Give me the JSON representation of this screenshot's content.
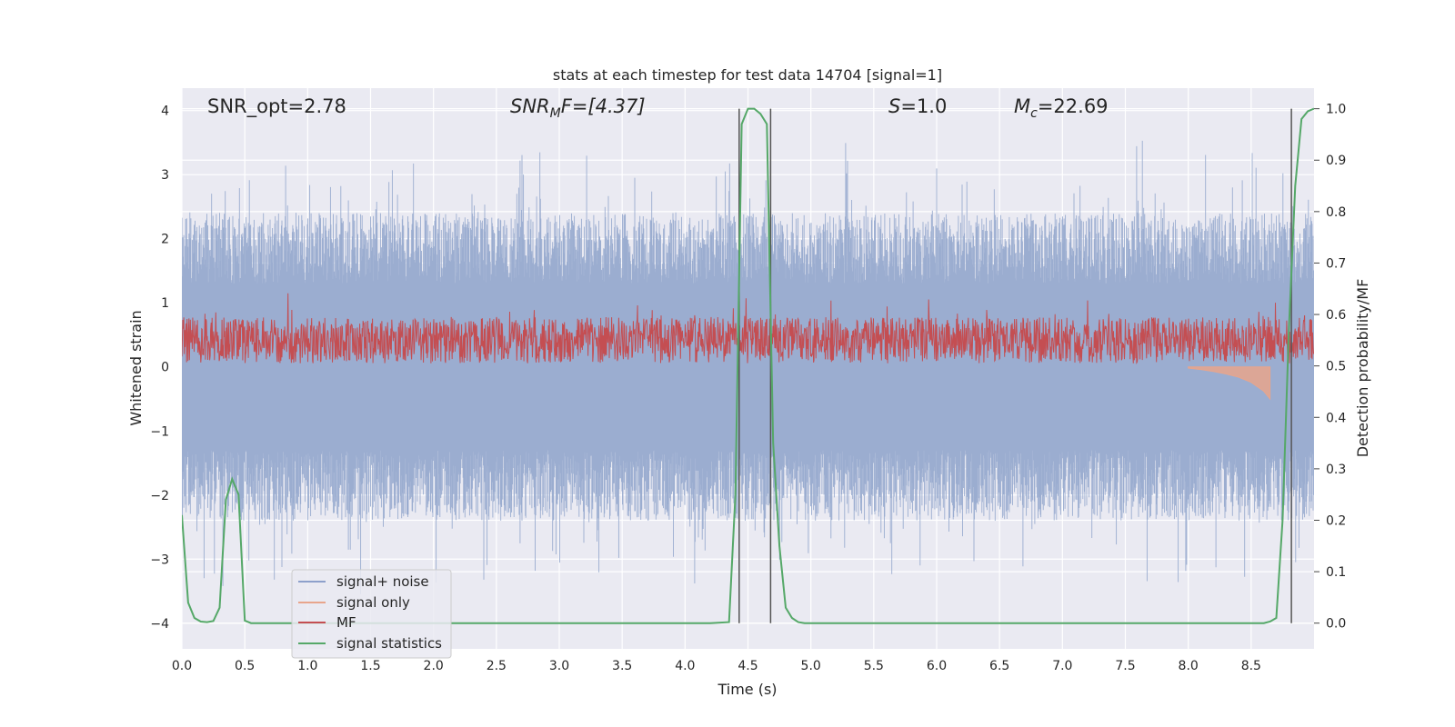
{
  "chart_data": {
    "type": "line",
    "title": "stats at each timestep for test data 14704 [signal=1]",
    "xlabel": "Time (s)",
    "ylabel": "Whitened strain",
    "y2label": "Detection probability/MF",
    "xlim": [
      0.0,
      9.0
    ],
    "ylim": [
      -4.4,
      4.35
    ],
    "y2lim": [
      -0.05,
      1.04
    ],
    "xticks": [
      "0.0",
      "0.5",
      "1.0",
      "1.5",
      "2.0",
      "2.5",
      "3.0",
      "3.5",
      "4.0",
      "4.5",
      "5.0",
      "5.5",
      "6.0",
      "6.5",
      "7.0",
      "7.5",
      "8.0",
      "8.5"
    ],
    "yticks": [
      "4",
      "3",
      "2",
      "1",
      "0",
      "−1",
      "−2",
      "−3",
      "−4"
    ],
    "y2ticks": [
      "1.0",
      "0.9",
      "0.8",
      "0.7",
      "0.6",
      "0.5",
      "0.4",
      "0.3",
      "0.2",
      "0.1",
      "0.0"
    ],
    "grid": true,
    "legend_position": "lower-left",
    "annotations": {
      "snr_opt": "SNR_opt=2.78",
      "snr_mf_main": "SNR",
      "snr_mf_sub": "M",
      "snr_mf_rest": "F=[4.37]",
      "s_main": "S",
      "s_rest": "=1.0",
      "mc_main": "M",
      "mc_sub": "c",
      "mc_rest": "=22.69"
    },
    "vertical_lines_x": [
      4.43,
      4.68,
      8.82
    ],
    "series": [
      {
        "name": "signal+ noise",
        "color": "#8da0cb",
        "style": "noise band, roughly between -2 and +2 with spikes to about ±3.5",
        "axis": "left"
      },
      {
        "name": "signal only",
        "color": "#e8a58c",
        "axis": "left",
        "x": [
          8.0,
          8.1,
          8.2,
          8.3,
          8.4,
          8.5,
          8.6,
          8.65
        ],
        "y": [
          -0.02,
          -0.04,
          -0.07,
          -0.11,
          -0.16,
          -0.24,
          -0.38,
          -0.5
        ]
      },
      {
        "name": "MF",
        "color": "#c44e52",
        "style": "dense trace between about 0.5 and 0.6 (right axis)",
        "axis": "right"
      },
      {
        "name": "signal statistics",
        "color": "#55a868",
        "axis": "right",
        "x": [
          0.0,
          0.05,
          0.1,
          0.15,
          0.2,
          0.25,
          0.3,
          0.35,
          0.4,
          0.45,
          0.5,
          0.55,
          0.6,
          0.7,
          0.8,
          1.0,
          2.0,
          3.0,
          4.0,
          4.2,
          4.35,
          4.4,
          4.45,
          4.5,
          4.55,
          4.6,
          4.65,
          4.7,
          4.75,
          4.8,
          4.85,
          4.9,
          4.95,
          5.0,
          5.5,
          6.0,
          7.0,
          8.0,
          8.5,
          8.6,
          8.65,
          8.7,
          8.75,
          8.8,
          8.85,
          8.9,
          8.95,
          9.0
        ],
        "y": [
          0.21,
          0.04,
          0.01,
          0.003,
          0.002,
          0.004,
          0.03,
          0.24,
          0.28,
          0.25,
          0.005,
          0.0,
          0.0,
          0.0,
          0.0,
          0.0,
          0.0,
          0.0,
          0.0,
          0.0,
          0.002,
          0.25,
          0.97,
          1.0,
          1.0,
          0.99,
          0.97,
          0.35,
          0.15,
          0.03,
          0.01,
          0.002,
          0.0,
          0.0,
          0.0,
          0.0,
          0.0,
          0.0,
          0.0,
          0.0,
          0.003,
          0.01,
          0.2,
          0.57,
          0.85,
          0.98,
          0.995,
          1.0
        ]
      }
    ]
  }
}
